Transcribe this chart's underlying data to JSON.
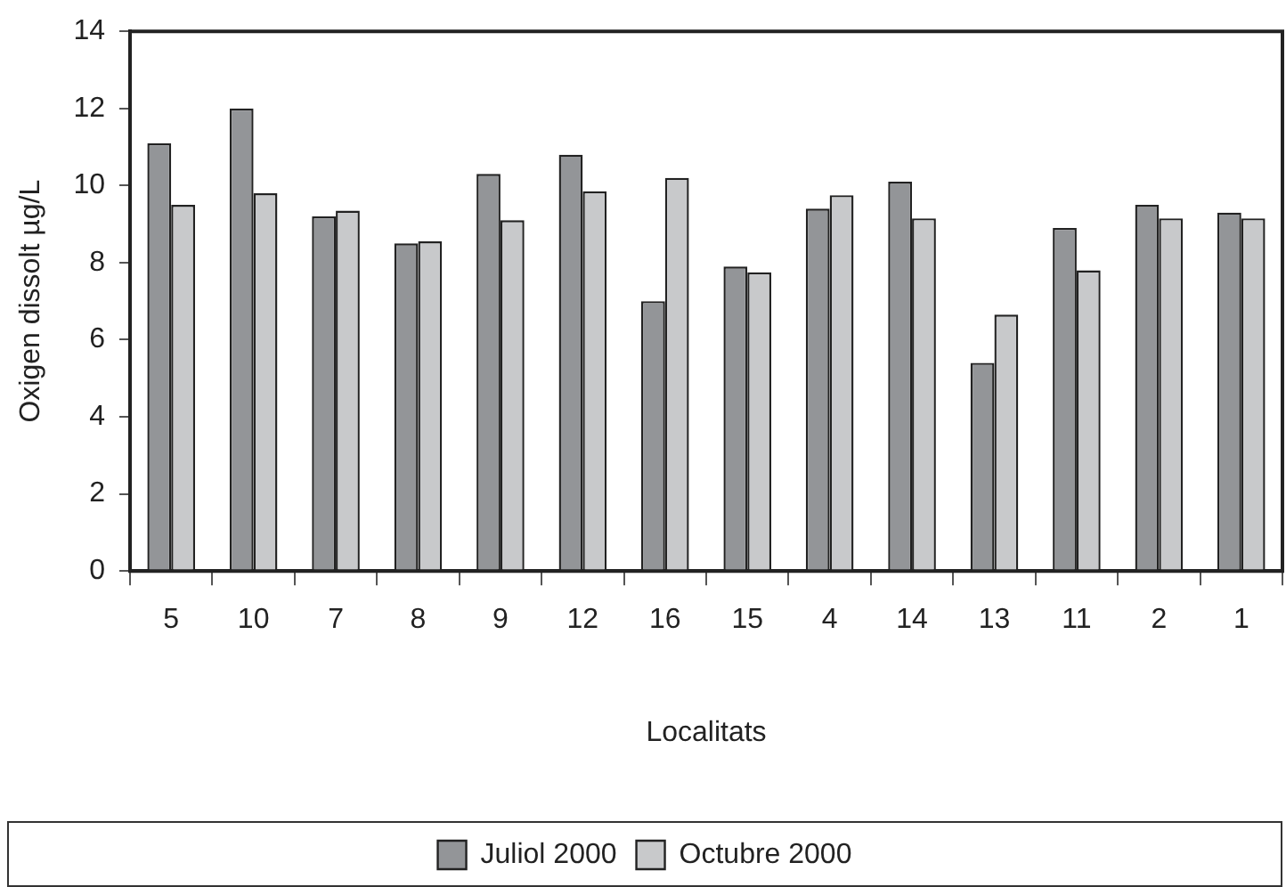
{
  "chart_data": {
    "type": "bar",
    "xlabel": "Localitats",
    "ylabel": "Oxigen dissolt µg/L",
    "categories": [
      "5",
      "10",
      "7",
      "8",
      "9",
      "12",
      "16",
      "15",
      "4",
      "14",
      "13",
      "11",
      "2",
      "1"
    ],
    "series": [
      {
        "name": "Juliol 2000",
        "color": "#939598",
        "values": [
          11.1,
          12.0,
          9.2,
          8.5,
          10.3,
          10.8,
          7.0,
          7.9,
          9.4,
          10.1,
          5.4,
          8.9,
          9.5,
          9.3
        ]
      },
      {
        "name": "Octubre 2000",
        "color": "#c8c9cb",
        "values": [
          9.5,
          9.8,
          9.35,
          8.55,
          9.1,
          9.85,
          10.2,
          7.75,
          9.75,
          9.15,
          6.65,
          7.8,
          9.15,
          9.15
        ]
      }
    ],
    "ylim": [
      0,
      14
    ],
    "yticks": [
      0,
      2,
      4,
      6,
      8,
      10,
      12,
      14
    ],
    "grid": false,
    "legend": "bottom"
  }
}
